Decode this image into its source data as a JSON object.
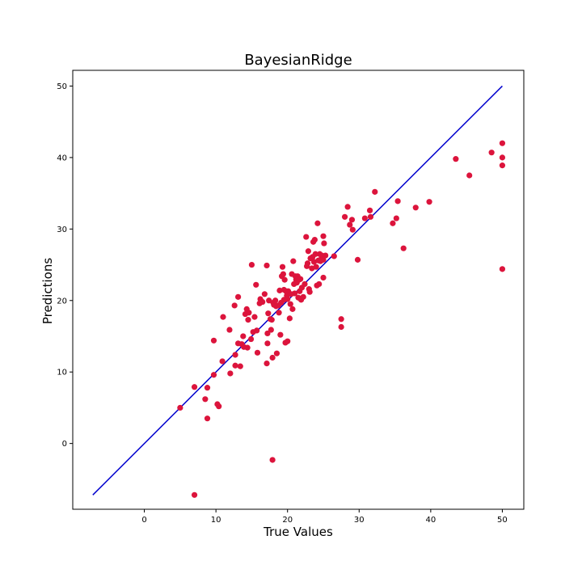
{
  "chart_data": {
    "type": "scatter",
    "title": "BayesianRidge",
    "xlabel": "True Values",
    "ylabel": "Predictions",
    "xlim": [
      -10,
      53
    ],
    "ylim": [
      -9.2,
      52.2
    ],
    "xticks": [
      0,
      10,
      20,
      30,
      40,
      50
    ],
    "yticks": [
      0,
      10,
      20,
      30,
      40,
      50
    ],
    "grid": false,
    "point_color": "#dc143c",
    "line_color": "#0000cd",
    "reference_line": {
      "x": [
        -7.2,
        50
      ],
      "y": [
        -7.2,
        50
      ]
    },
    "series": [
      {
        "points": [
          [
            5.0,
            5.0
          ],
          [
            7.0,
            7.9
          ],
          [
            7.0,
            -7.2
          ],
          [
            8.5,
            6.2
          ],
          [
            8.8,
            7.8
          ],
          [
            8.8,
            3.5
          ],
          [
            9.7,
            9.6
          ],
          [
            9.7,
            14.4
          ],
          [
            10.2,
            5.5
          ],
          [
            10.4,
            5.2
          ],
          [
            10.9,
            11.5
          ],
          [
            11.0,
            17.7
          ],
          [
            11.9,
            15.9
          ],
          [
            12.0,
            9.8
          ],
          [
            12.6,
            19.3
          ],
          [
            12.7,
            10.9
          ],
          [
            12.7,
            12.4
          ],
          [
            13.1,
            20.5
          ],
          [
            13.1,
            14.0
          ],
          [
            13.4,
            10.8
          ],
          [
            13.6,
            13.9
          ],
          [
            13.8,
            15.0
          ],
          [
            13.9,
            13.5
          ],
          [
            14.1,
            18.1
          ],
          [
            14.3,
            18.8
          ],
          [
            14.4,
            13.4
          ],
          [
            14.5,
            17.3
          ],
          [
            14.6,
            18.3
          ],
          [
            14.9,
            14.6
          ],
          [
            15.0,
            25.0
          ],
          [
            15.2,
            15.6
          ],
          [
            15.4,
            17.7
          ],
          [
            15.6,
            22.2
          ],
          [
            15.7,
            15.8
          ],
          [
            15.8,
            12.7
          ],
          [
            16.1,
            19.6
          ],
          [
            16.2,
            20.2
          ],
          [
            16.5,
            19.8
          ],
          [
            16.8,
            20.9
          ],
          [
            17.1,
            24.9
          ],
          [
            17.1,
            11.2
          ],
          [
            17.2,
            14.0
          ],
          [
            17.2,
            15.4
          ],
          [
            17.3,
            18.2
          ],
          [
            17.4,
            20.0
          ],
          [
            17.6,
            17.4
          ],
          [
            17.7,
            15.9
          ],
          [
            17.8,
            17.3
          ],
          [
            17.9,
            12.0
          ],
          [
            18.0,
            19.7
          ],
          [
            18.1,
            19.4
          ],
          [
            18.3,
            20.0
          ],
          [
            18.4,
            19.2
          ],
          [
            18.5,
            12.6
          ],
          [
            18.7,
            19.3
          ],
          [
            18.8,
            18.3
          ],
          [
            18.9,
            21.4
          ],
          [
            19.0,
            15.2
          ],
          [
            19.1,
            19.7
          ],
          [
            19.2,
            23.4
          ],
          [
            19.3,
            24.7
          ],
          [
            19.4,
            23.7
          ],
          [
            19.5,
            20.1
          ],
          [
            19.5,
            21.5
          ],
          [
            19.6,
            22.9
          ],
          [
            19.7,
            14.1
          ],
          [
            19.8,
            21.3
          ],
          [
            19.9,
            20.7
          ],
          [
            20.0,
            20.2
          ],
          [
            20.0,
            14.3
          ],
          [
            20.1,
            21.3
          ],
          [
            20.3,
            17.5
          ],
          [
            20.4,
            19.5
          ],
          [
            20.5,
            20.9
          ],
          [
            20.6,
            23.7
          ],
          [
            20.7,
            18.8
          ],
          [
            20.8,
            25.5
          ],
          [
            20.9,
            22.3
          ],
          [
            21.0,
            21.0
          ],
          [
            21.1,
            23.4
          ],
          [
            21.2,
            22.9
          ],
          [
            21.3,
            22.5
          ],
          [
            21.4,
            23.4
          ],
          [
            21.5,
            20.4
          ],
          [
            21.6,
            22.9
          ],
          [
            21.7,
            21.3
          ],
          [
            21.8,
            23.0
          ],
          [
            21.9,
            20.1
          ],
          [
            22.0,
            21.8
          ],
          [
            22.2,
            20.5
          ],
          [
            22.4,
            22.3
          ],
          [
            22.6,
            28.9
          ],
          [
            22.7,
            24.8
          ],
          [
            22.8,
            25.2
          ],
          [
            22.9,
            26.9
          ],
          [
            23.0,
            21.6
          ],
          [
            23.1,
            21.2
          ],
          [
            23.2,
            25.9
          ],
          [
            23.4,
            24.5
          ],
          [
            23.5,
            26.1
          ],
          [
            23.6,
            28.2
          ],
          [
            23.7,
            25.4
          ],
          [
            23.8,
            28.5
          ],
          [
            23.9,
            26.5
          ],
          [
            24.0,
            24.7
          ],
          [
            24.1,
            22.1
          ],
          [
            24.2,
            30.8
          ],
          [
            24.3,
            25.6
          ],
          [
            24.4,
            22.3
          ],
          [
            24.5,
            26.5
          ],
          [
            24.6,
            25.5
          ],
          [
            24.7,
            25.8
          ],
          [
            24.8,
            26.3
          ],
          [
            25.0,
            25.7
          ],
          [
            25.0,
            23.2
          ],
          [
            25.0,
            29.0
          ],
          [
            25.1,
            28.0
          ],
          [
            25.3,
            26.3
          ],
          [
            26.5,
            26.2
          ],
          [
            27.5,
            17.4
          ],
          [
            27.5,
            16.3
          ],
          [
            28.0,
            31.7
          ],
          [
            28.4,
            33.1
          ],
          [
            28.7,
            30.6
          ],
          [
            29.0,
            31.3
          ],
          [
            29.1,
            29.9
          ],
          [
            29.8,
            25.7
          ],
          [
            30.8,
            31.5
          ],
          [
            31.5,
            32.6
          ],
          [
            31.6,
            31.7
          ],
          [
            32.2,
            35.2
          ],
          [
            34.7,
            30.8
          ],
          [
            35.2,
            31.5
          ],
          [
            35.4,
            33.9
          ],
          [
            36.2,
            27.3
          ],
          [
            37.9,
            33.0
          ],
          [
            39.8,
            33.8
          ],
          [
            43.5,
            39.8
          ],
          [
            45.4,
            37.5
          ],
          [
            48.5,
            40.7
          ],
          [
            50.0,
            42.0
          ],
          [
            50.0,
            40.0
          ],
          [
            50.0,
            38.9
          ],
          [
            50.0,
            24.4
          ],
          [
            17.9,
            -2.3
          ]
        ]
      }
    ]
  }
}
